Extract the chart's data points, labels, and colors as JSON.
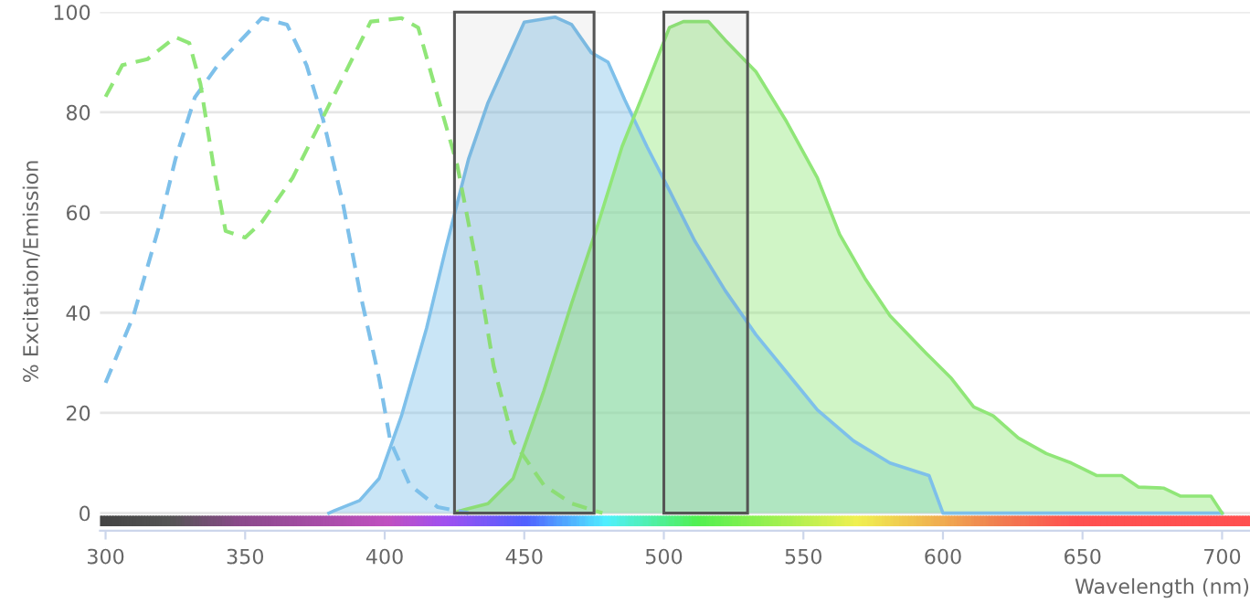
{
  "chart_data": {
    "type": "area",
    "xlabel": "Wavelength (nm)",
    "ylabel": "% Excitation/Emission",
    "xlim": [
      298,
      710
    ],
    "ylim": [
      -3.5,
      100
    ],
    "xticks": [
      300,
      350,
      400,
      450,
      500,
      550,
      600,
      650,
      700
    ],
    "yticks": [
      0,
      20,
      40,
      60,
      80,
      100
    ],
    "grid": "y",
    "legend": false,
    "bands": [
      {
        "axis": "x",
        "from": 425,
        "to": 475,
        "color": "#555555"
      },
      {
        "axis": "x",
        "from": 500,
        "to": 530,
        "color": "#555555"
      }
    ],
    "series": [
      {
        "color": "#7ec0ea",
        "x": [
          380,
          382,
          391,
          398,
          406,
          415,
          422,
          430,
          437,
          442,
          450,
          461,
          467,
          474,
          480,
          486,
          494,
          502,
          511,
          522,
          533,
          544,
          555,
          568,
          581,
          595,
          600,
          700
        ],
        "values": [
          0,
          0.5,
          2.5,
          6.9,
          19.4,
          36.9,
          53.1,
          70.6,
          81.9,
          88.1,
          98,
          99,
          97.5,
          91.9,
          90,
          82.5,
          73.1,
          64.4,
          54.4,
          44.4,
          35.6,
          28.1,
          20.6,
          14.4,
          10,
          7.5,
          0,
          0
        ]
      },
      {
        "color": "#90e678",
        "x": [
          426,
          437,
          446,
          457,
          467,
          476,
          485,
          494,
          502,
          507,
          516,
          522,
          533,
          544,
          555,
          563,
          572,
          581,
          594,
          603,
          611,
          618,
          627,
          637,
          646,
          655,
          664,
          670,
          679,
          685,
          696,
          700
        ],
        "values": [
          0.3,
          1.9,
          6.9,
          24.4,
          41.9,
          56.9,
          73.1,
          85.6,
          96.9,
          98.1,
          98.1,
          94.4,
          88.1,
          78.1,
          66.9,
          55.6,
          46.9,
          39.4,
          31.9,
          26.9,
          21.2,
          19.4,
          15,
          11.9,
          10,
          7.5,
          7.5,
          5.2,
          5,
          3.4,
          3.4,
          0
        ]
      },
      {
        "type": "line",
        "line_style": "dashed",
        "color": "#7ec0ea",
        "x": [
          300,
          310,
          319,
          325,
          332,
          341,
          356,
          365,
          372,
          378,
          385,
          391,
          398,
          402,
          409,
          419,
          430
        ],
        "values": [
          26,
          39.4,
          56.9,
          70.6,
          83,
          90,
          98.8,
          97.5,
          89.4,
          78.4,
          61.9,
          44.4,
          26.9,
          14.4,
          5.6,
          1.2,
          0
        ]
      },
      {
        "type": "line",
        "line_style": "dashed",
        "color": "#90e678",
        "x": [
          300,
          306,
          315,
          325,
          330,
          334,
          339,
          343,
          350,
          356,
          367,
          376,
          385,
          395,
          406,
          412,
          419,
          426,
          433,
          439,
          446,
          457,
          467,
          478
        ],
        "values": [
          83.1,
          89.4,
          90.6,
          95,
          93.8,
          85.6,
          68.1,
          56.3,
          55,
          58.1,
          66.9,
          76.9,
          86.9,
          98.1,
          98.8,
          96.9,
          83.1,
          69.4,
          49.4,
          29.4,
          14.4,
          5.6,
          1.9,
          0
        ]
      }
    ]
  }
}
